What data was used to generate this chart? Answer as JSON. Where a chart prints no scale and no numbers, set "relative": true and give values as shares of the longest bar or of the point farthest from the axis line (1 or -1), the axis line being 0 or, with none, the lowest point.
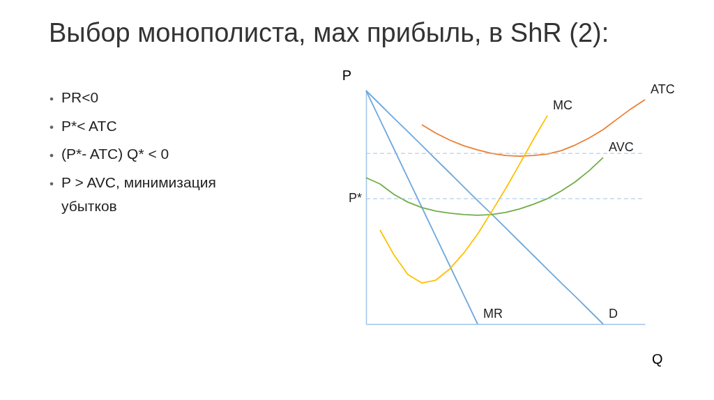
{
  "chart_data": {
    "type": "line",
    "relative": true,
    "title": "Выбор монополиста, мах прибыль, в ShR (2):",
    "xlabel": "Q",
    "ylabel": "P",
    "annotations": [
      "PR<0",
      "P*< ATC",
      "(P*- ATC) Q* < 0",
      "P > AVC, минимизация\nубытков"
    ],
    "categories": [
      null,
      null,
      null,
      null,
      null,
      null,
      null,
      null,
      null,
      null,
      null,
      null,
      null,
      null,
      null,
      null,
      null,
      null,
      null,
      null,
      null
    ],
    "series": [
      {
        "name": "D",
        "color": "#6fa8dc",
        "values": [
          1,
          0.941,
          0.882,
          0.824,
          0.765,
          0.706,
          0.647,
          0.588,
          0.529,
          0.471,
          0.412,
          0.353,
          0.294,
          0.235,
          0.176,
          0.118,
          0.059,
          0,
          null,
          null,
          null
        ]
      },
      {
        "name": "MR",
        "color": "#6fa8dc",
        "values": [
          1,
          0.875,
          0.75,
          0.625,
          0.5,
          0.375,
          0.25,
          0.125,
          0,
          null,
          null,
          null,
          null,
          null,
          null,
          null,
          null,
          null,
          null,
          null,
          null
        ]
      },
      {
        "name": "ATC",
        "color": "#ed7d31",
        "values": [
          null,
          null,
          null,
          null,
          0.854,
          0.818,
          0.788,
          0.764,
          0.746,
          0.731,
          0.722,
          0.719,
          0.722,
          0.728,
          0.743,
          0.767,
          0.797,
          0.833,
          0.878,
          0.922,
          0.961
        ]
      },
      {
        "name": "AVC",
        "color": "#70ad47",
        "values": [
          0.627,
          0.6,
          0.555,
          0.522,
          0.499,
          0.484,
          0.475,
          0.469,
          0.466,
          0.469,
          0.478,
          0.493,
          0.513,
          0.537,
          0.57,
          0.609,
          0.657,
          0.713,
          null,
          null,
          null
        ]
      },
      {
        "name": "MC",
        "color": "#ffc000",
        "values": [
          null,
          0.403,
          0.296,
          0.212,
          0.176,
          0.188,
          0.236,
          0.304,
          0.385,
          0.481,
          0.579,
          0.684,
          0.791,
          0.893,
          null,
          null,
          null,
          null,
          null,
          null,
          null
        ]
      }
    ],
    "ref_lines": [
      {
        "axis": "y",
        "value": 0.731,
        "label": null,
        "color": "#9dc3e6",
        "line_style": "dashed"
      },
      {
        "axis": "y",
        "value": 0.537,
        "label": "P*",
        "color": "#9dc3e6",
        "line_style": "dashed"
      }
    ],
    "legend": false,
    "grid": false,
    "marker": "none",
    "line_style": "solid"
  }
}
